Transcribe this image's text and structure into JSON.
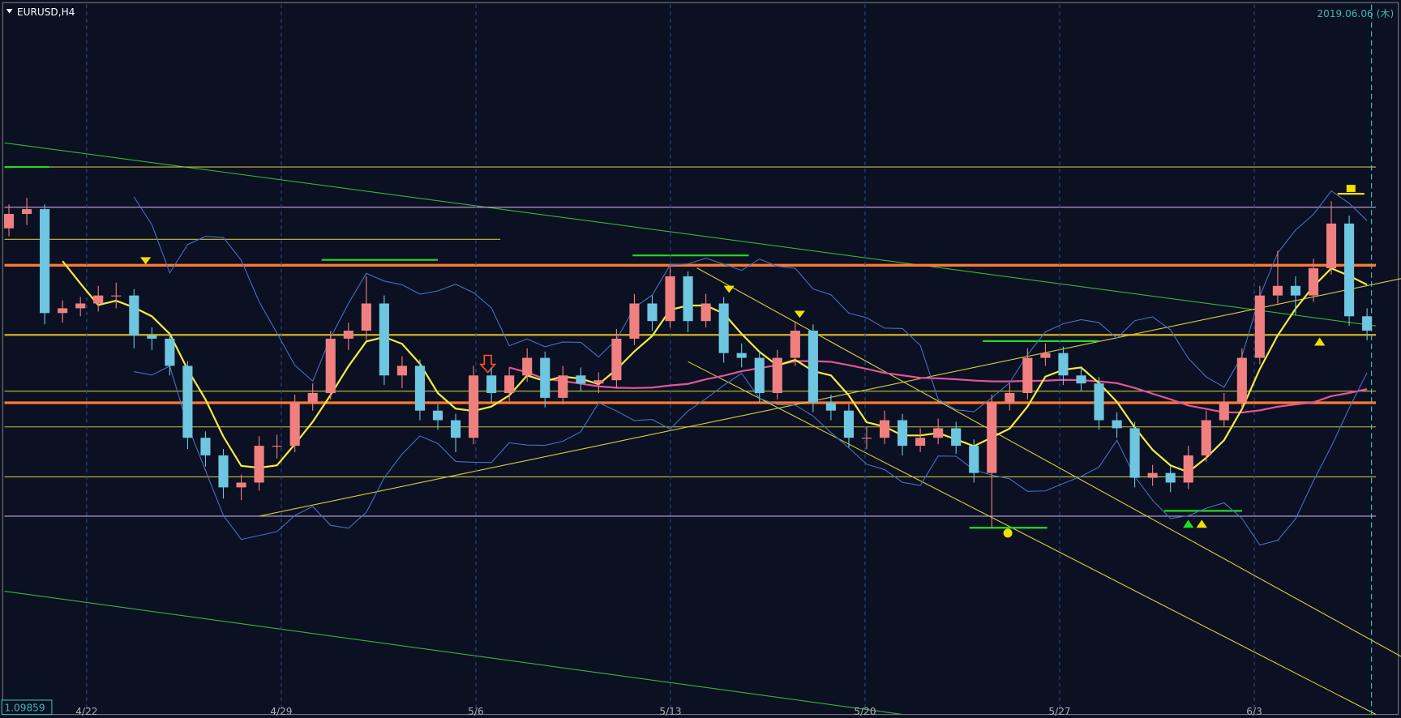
{
  "header": {
    "symbol": "EURUSD,H4",
    "datetime": "2019.06.06 (木)"
  },
  "chart_data": {
    "type": "candlestick",
    "ylim": [
      1.0986,
      1.143
    ],
    "up_color": "#f08080",
    "down_color": "#6ec6e0",
    "price_label": 1.09859,
    "x_labels": [
      "4/22",
      "4/29",
      "5/6",
      "5/13",
      "5/20",
      "5/27",
      "6/3"
    ],
    "candles": [
      [
        1.129,
        1.1305,
        1.1285,
        1.1299
      ],
      [
        1.1299,
        1.1309,
        1.1292,
        1.1302
      ],
      [
        1.1302,
        1.1305,
        1.123,
        1.1237
      ],
      [
        1.1237,
        1.1245,
        1.1231,
        1.124
      ],
      [
        1.124,
        1.1247,
        1.1235,
        1.1243
      ],
      [
        1.1243,
        1.1254,
        1.1238,
        1.1248
      ],
      [
        1.1248,
        1.1256,
        1.124,
        1.1248
      ],
      [
        1.1248,
        1.1252,
        1.1215,
        1.1223
      ],
      [
        1.1223,
        1.1228,
        1.1214,
        1.1221
      ],
      [
        1.1221,
        1.1225,
        1.1198,
        1.1204
      ],
      [
        1.1204,
        1.1207,
        1.1152,
        1.1159
      ],
      [
        1.1159,
        1.1163,
        1.1141,
        1.1148
      ],
      [
        1.1148,
        1.1152,
        1.1121,
        1.1128
      ],
      [
        1.1128,
        1.1136,
        1.112,
        1.1131
      ],
      [
        1.1131,
        1.116,
        1.1126,
        1.1154
      ],
      [
        1.1154,
        1.1161,
        1.1146,
        1.1154
      ],
      [
        1.1154,
        1.1186,
        1.115,
        1.1181
      ],
      [
        1.1181,
        1.1193,
        1.1176,
        1.1187
      ],
      [
        1.1187,
        1.1226,
        1.1183,
        1.1221
      ],
      [
        1.1221,
        1.1231,
        1.1214,
        1.1226
      ],
      [
        1.1226,
        1.126,
        1.122,
        1.1243
      ],
      [
        1.1243,
        1.1248,
        1.1192,
        1.1198
      ],
      [
        1.1198,
        1.121,
        1.119,
        1.1204
      ],
      [
        1.1204,
        1.1208,
        1.117,
        1.1176
      ],
      [
        1.1176,
        1.118,
        1.1164,
        1.117
      ],
      [
        1.117,
        1.1174,
        1.115,
        1.1159
      ],
      [
        1.1159,
        1.1204,
        1.1155,
        1.1198
      ],
      [
        1.1198,
        1.1203,
        1.1181,
        1.1187
      ],
      [
        1.1187,
        1.1203,
        1.1182,
        1.1198
      ],
      [
        1.1198,
        1.1215,
        1.1194,
        1.1209
      ],
      [
        1.1209,
        1.1213,
        1.1178,
        1.1184
      ],
      [
        1.1184,
        1.1204,
        1.118,
        1.1198
      ],
      [
        1.1198,
        1.1203,
        1.1188,
        1.1193
      ],
      [
        1.1193,
        1.12,
        1.1187,
        1.1195
      ],
      [
        1.1195,
        1.1227,
        1.119,
        1.1221
      ],
      [
        1.1221,
        1.1249,
        1.1217,
        1.1243
      ],
      [
        1.1243,
        1.1248,
        1.1226,
        1.1232
      ],
      [
        1.1232,
        1.1266,
        1.1228,
        1.126
      ],
      [
        1.126,
        1.1263,
        1.1225,
        1.1232
      ],
      [
        1.1232,
        1.1249,
        1.1228,
        1.1243
      ],
      [
        1.1243,
        1.1247,
        1.1206,
        1.1212
      ],
      [
        1.1212,
        1.1218,
        1.1203,
        1.1209
      ],
      [
        1.1209,
        1.1213,
        1.1181,
        1.1187
      ],
      [
        1.1187,
        1.1214,
        1.1183,
        1.1209
      ],
      [
        1.1209,
        1.1232,
        1.1204,
        1.1226
      ],
      [
        1.1226,
        1.123,
        1.1175,
        1.1181
      ],
      [
        1.1181,
        1.1186,
        1.117,
        1.1176
      ],
      [
        1.1176,
        1.118,
        1.1153,
        1.1159
      ],
      [
        1.1159,
        1.1166,
        1.1152,
        1.1159
      ],
      [
        1.1159,
        1.1176,
        1.1155,
        1.117
      ],
      [
        1.117,
        1.1174,
        1.1148,
        1.1154
      ],
      [
        1.1154,
        1.1165,
        1.115,
        1.1159
      ],
      [
        1.1159,
        1.1171,
        1.1155,
        1.1165
      ],
      [
        1.1165,
        1.1169,
        1.1149,
        1.1154
      ],
      [
        1.1154,
        1.1158,
        1.1131,
        1.1137
      ],
      [
        1.1137,
        1.1186,
        1.1103,
        1.1181
      ],
      [
        1.1181,
        1.1193,
        1.1176,
        1.1187
      ],
      [
        1.1187,
        1.1215,
        1.1183,
        1.1209
      ],
      [
        1.1209,
        1.1218,
        1.1204,
        1.1212
      ],
      [
        1.1212,
        1.1216,
        1.1192,
        1.1198
      ],
      [
        1.1198,
        1.1203,
        1.1188,
        1.1193
      ],
      [
        1.1193,
        1.1197,
        1.1164,
        1.117
      ],
      [
        1.117,
        1.1175,
        1.1159,
        1.1165
      ],
      [
        1.1165,
        1.1169,
        1.1128,
        1.1134
      ],
      [
        1.1134,
        1.1142,
        1.1129,
        1.1137
      ],
      [
        1.1137,
        1.1141,
        1.1125,
        1.1131
      ],
      [
        1.1131,
        1.1154,
        1.1127,
        1.1148
      ],
      [
        1.1148,
        1.1176,
        1.1144,
        1.117
      ],
      [
        1.117,
        1.1187,
        1.1166,
        1.1181
      ],
      [
        1.1181,
        1.1215,
        1.1177,
        1.1209
      ],
      [
        1.1209,
        1.1254,
        1.1205,
        1.1248
      ],
      [
        1.1248,
        1.1276,
        1.1243,
        1.1254
      ],
      [
        1.1254,
        1.126,
        1.1236,
        1.1248
      ],
      [
        1.1248,
        1.1271,
        1.1244,
        1.1265
      ],
      [
        1.1265,
        1.1307,
        1.1261,
        1.1293
      ],
      [
        1.1293,
        1.1298,
        1.1229,
        1.1235
      ],
      [
        1.1235,
        1.124,
        1.122,
        1.1226
      ]
    ]
  }
}
